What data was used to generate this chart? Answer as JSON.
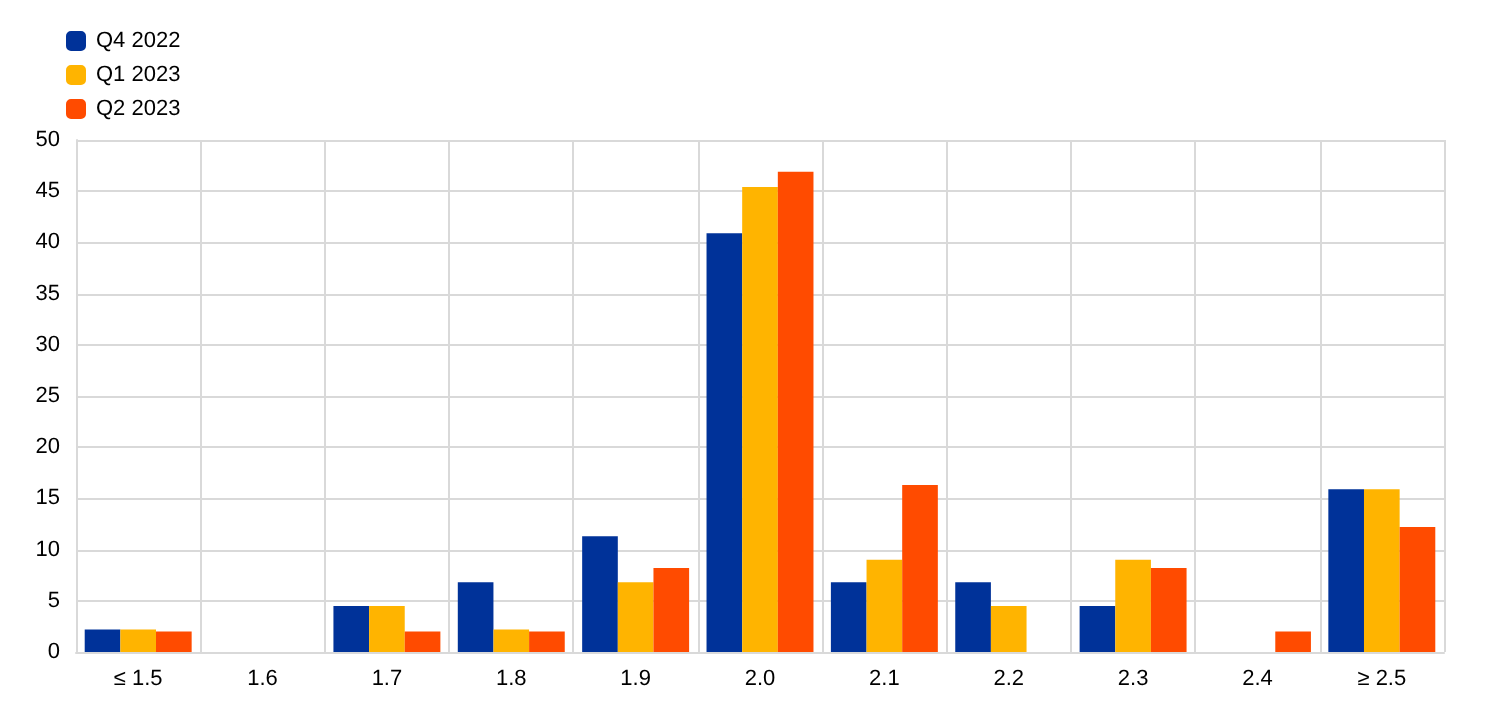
{
  "chart_data": {
    "type": "bar",
    "categories": [
      "≤ 1.5",
      "1.6",
      "1.7",
      "1.8",
      "1.9",
      "2.0",
      "2.1",
      "2.2",
      "2.3",
      "2.4",
      "≥ 2.5"
    ],
    "series": [
      {
        "name": "Q4 2022",
        "color": "#003299",
        "values": [
          2.2,
          0,
          4.5,
          6.8,
          11.3,
          40.9,
          6.8,
          6.8,
          4.5,
          0,
          15.9
        ]
      },
      {
        "name": "Q1 2023",
        "color": "#ffb400",
        "values": [
          2.2,
          0,
          4.5,
          2.2,
          6.8,
          45.4,
          9.0,
          4.5,
          9.0,
          0,
          15.9
        ]
      },
      {
        "name": "Q2 2023",
        "color": "#ff4b00",
        "values": [
          2.0,
          0,
          2.0,
          2.0,
          8.2,
          46.9,
          16.3,
          0,
          8.2,
          2.0,
          12.2
        ]
      }
    ],
    "ylim": [
      0,
      50
    ],
    "yticks": [
      0,
      5,
      10,
      15,
      20,
      25,
      30,
      35,
      40,
      45,
      50
    ],
    "grid": true,
    "legend": "top left"
  }
}
